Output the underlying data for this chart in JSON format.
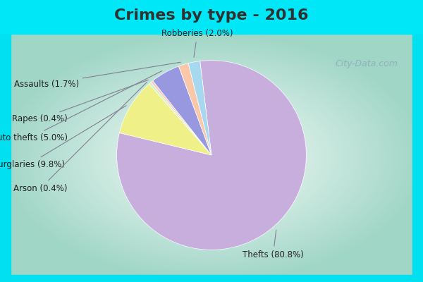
{
  "title": "Crimes by type - 2016",
  "title_fontsize": 16,
  "title_fontweight": "bold",
  "slices": [
    {
      "label": "Thefts",
      "pct": 80.8,
      "color": "#c8aedd"
    },
    {
      "label": "Burglaries",
      "pct": 9.8,
      "color": "#f0f088"
    },
    {
      "label": "Arson",
      "pct": 0.4,
      "color": "#d4f0c0"
    },
    {
      "label": "Rapes",
      "pct": 0.4,
      "color": "#f8c8c0"
    },
    {
      "label": "Auto thefts",
      "pct": 5.0,
      "color": "#9898e0"
    },
    {
      "label": "Assaults",
      "pct": 1.7,
      "color": "#f8c8a8"
    },
    {
      "label": "Robberies",
      "pct": 2.0,
      "color": "#a8d8f0"
    }
  ],
  "label_fontsize": 8.5,
  "title_color": "#303030",
  "line_color": "#808090",
  "watermark_text": "City-Data.com",
  "watermark_color": "#90aab8"
}
